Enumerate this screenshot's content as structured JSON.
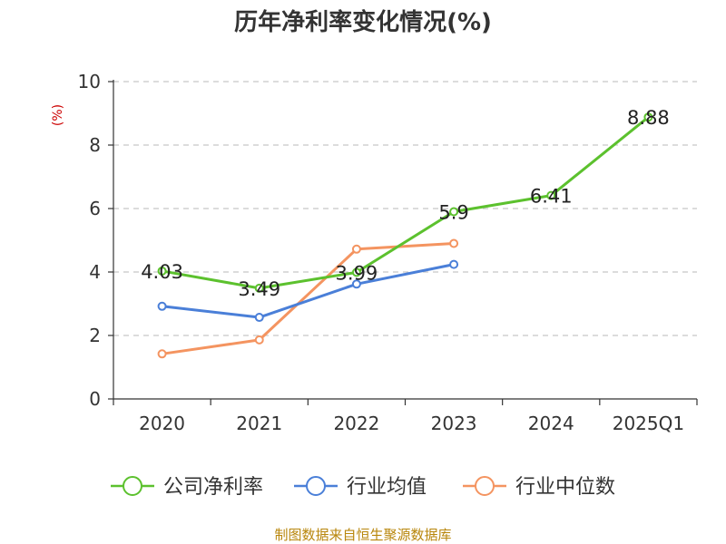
{
  "chart_data": {
    "type": "line",
    "title": "历年净利率变化情况(%)",
    "ylabel": "(%)",
    "xlabel": "",
    "categories": [
      "2020",
      "2021",
      "2022",
      "2023",
      "2024",
      "2025Q1"
    ],
    "ylim": [
      0,
      10
    ],
    "yticks": [
      0,
      2,
      4,
      6,
      8,
      10
    ],
    "grid": true,
    "legend_position": "bottom",
    "series": [
      {
        "name": "公司净利率",
        "color": "#5cc12e",
        "values": [
          4.03,
          3.49,
          3.99,
          5.9,
          6.41,
          8.88
        ],
        "labels": [
          "4.03",
          "3.49",
          "3.99",
          "5.9",
          "6.41",
          "8.88"
        ]
      },
      {
        "name": "行业均值",
        "color": "#4a7fd8",
        "values": [
          2.92,
          2.57,
          3.62,
          4.24,
          null,
          null
        ]
      },
      {
        "name": "行业中位数",
        "color": "#f49460",
        "values": [
          1.42,
          1.86,
          4.72,
          4.9,
          null,
          null
        ]
      }
    ]
  },
  "source_text": "制图数据来自恒生聚源数据库"
}
